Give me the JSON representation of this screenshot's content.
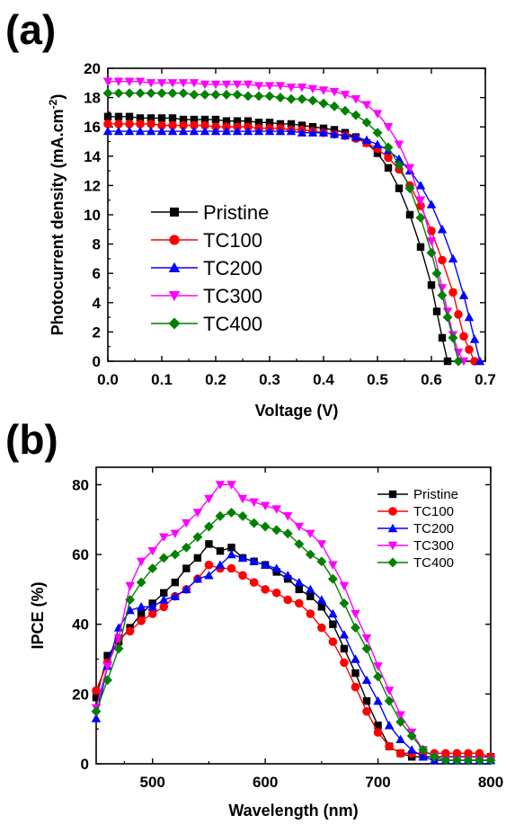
{
  "panels": {
    "a": "(a)",
    "b": "(b)"
  },
  "chart_data": [
    {
      "type": "line",
      "panel": "(a)",
      "xlabel": "Voltage (V)",
      "ylabel": "Photocurrent density (mA.cm",
      "ylabel_sup": "-2",
      "ylabel_end": ")",
      "xlim": [
        0,
        0.7
      ],
      "ylim": [
        0,
        20
      ],
      "xticks": [
        "0.0",
        "0.1",
        "0.2",
        "0.3",
        "0.4",
        "0.5",
        "0.6",
        "0.7"
      ],
      "yticks": [
        "0",
        "2",
        "4",
        "6",
        "8",
        "10",
        "12",
        "14",
        "16",
        "18",
        "20"
      ],
      "legend_position": "center-left",
      "series": [
        {
          "name": "Pristine",
          "color": "#000000",
          "marker": "square",
          "x": [
            0,
            0.02,
            0.04,
            0.06,
            0.08,
            0.1,
            0.12,
            0.14,
            0.16,
            0.18,
            0.2,
            0.22,
            0.24,
            0.26,
            0.28,
            0.3,
            0.32,
            0.34,
            0.36,
            0.38,
            0.4,
            0.42,
            0.44,
            0.46,
            0.48,
            0.5,
            0.52,
            0.54,
            0.56,
            0.58,
            0.6,
            0.61,
            0.62,
            0.63
          ],
          "y": [
            16.7,
            16.7,
            16.7,
            16.6,
            16.6,
            16.6,
            16.6,
            16.5,
            16.5,
            16.5,
            16.5,
            16.4,
            16.4,
            16.4,
            16.3,
            16.3,
            16.2,
            16.2,
            16.1,
            16.0,
            15.9,
            15.8,
            15.6,
            15.3,
            14.9,
            14.2,
            13.2,
            11.8,
            10.0,
            7.8,
            5.2,
            3.4,
            1.6,
            0
          ]
        },
        {
          "name": "TC100",
          "color": "#ff0000",
          "marker": "circle",
          "x": [
            0,
            0.02,
            0.04,
            0.06,
            0.08,
            0.1,
            0.12,
            0.14,
            0.16,
            0.18,
            0.2,
            0.22,
            0.24,
            0.26,
            0.28,
            0.3,
            0.32,
            0.34,
            0.36,
            0.38,
            0.4,
            0.42,
            0.44,
            0.46,
            0.48,
            0.5,
            0.52,
            0.54,
            0.56,
            0.58,
            0.6,
            0.62,
            0.64,
            0.65,
            0.66,
            0.67,
            0.68
          ],
          "y": [
            16.2,
            16.2,
            16.2,
            16.2,
            16.2,
            16.1,
            16.1,
            16.1,
            16.1,
            16.1,
            16.0,
            16.0,
            16.0,
            16.0,
            15.9,
            15.9,
            15.9,
            15.8,
            15.8,
            15.7,
            15.6,
            15.5,
            15.4,
            15.2,
            14.9,
            14.5,
            13.9,
            13.1,
            12.0,
            10.6,
            8.9,
            6.9,
            4.7,
            3.2,
            1.7,
            0.8,
            0
          ]
        },
        {
          "name": "TC200",
          "color": "#0000ff",
          "marker": "triangle-up",
          "x": [
            0,
            0.02,
            0.04,
            0.06,
            0.08,
            0.1,
            0.12,
            0.14,
            0.16,
            0.18,
            0.2,
            0.22,
            0.24,
            0.26,
            0.28,
            0.3,
            0.32,
            0.34,
            0.36,
            0.38,
            0.4,
            0.42,
            0.44,
            0.46,
            0.48,
            0.5,
            0.52,
            0.54,
            0.56,
            0.58,
            0.6,
            0.62,
            0.64,
            0.66,
            0.67,
            0.68,
            0.69
          ],
          "y": [
            15.7,
            15.7,
            15.7,
            15.7,
            15.7,
            15.7,
            15.7,
            15.7,
            15.7,
            15.7,
            15.7,
            15.7,
            15.7,
            15.7,
            15.7,
            15.7,
            15.7,
            15.7,
            15.6,
            15.6,
            15.6,
            15.5,
            15.4,
            15.3,
            15.1,
            14.8,
            14.4,
            13.8,
            13.0,
            12.0,
            10.7,
            9.0,
            7.0,
            4.5,
            3.0,
            1.5,
            0
          ]
        },
        {
          "name": "TC300",
          "color": "#ff00ff",
          "marker": "triangle-down",
          "x": [
            0,
            0.02,
            0.04,
            0.06,
            0.08,
            0.1,
            0.12,
            0.14,
            0.16,
            0.18,
            0.2,
            0.22,
            0.24,
            0.26,
            0.28,
            0.3,
            0.32,
            0.34,
            0.36,
            0.38,
            0.4,
            0.42,
            0.44,
            0.46,
            0.48,
            0.5,
            0.52,
            0.54,
            0.56,
            0.58,
            0.6,
            0.62,
            0.63,
            0.64,
            0.65,
            0.66
          ],
          "y": [
            19.1,
            19.1,
            19.1,
            19.1,
            19.0,
            19.0,
            19.0,
            19.0,
            19.0,
            18.9,
            18.9,
            18.9,
            18.9,
            18.9,
            18.8,
            18.8,
            18.8,
            18.7,
            18.7,
            18.6,
            18.5,
            18.4,
            18.2,
            17.9,
            17.5,
            16.9,
            16.0,
            14.8,
            13.2,
            11.0,
            8.2,
            5.0,
            3.4,
            1.8,
            0.6,
            0
          ]
        },
        {
          "name": "TC400",
          "color": "#008000",
          "marker": "diamond",
          "x": [
            0,
            0.02,
            0.04,
            0.06,
            0.08,
            0.1,
            0.12,
            0.14,
            0.16,
            0.18,
            0.2,
            0.22,
            0.24,
            0.26,
            0.28,
            0.3,
            0.32,
            0.34,
            0.36,
            0.38,
            0.4,
            0.42,
            0.44,
            0.46,
            0.48,
            0.5,
            0.52,
            0.54,
            0.56,
            0.58,
            0.6,
            0.61,
            0.62,
            0.63,
            0.64,
            0.65
          ],
          "y": [
            18.3,
            18.3,
            18.3,
            18.3,
            18.3,
            18.3,
            18.3,
            18.3,
            18.2,
            18.2,
            18.2,
            18.2,
            18.2,
            18.1,
            18.1,
            18.1,
            18.0,
            17.9,
            17.9,
            17.8,
            17.6,
            17.4,
            17.1,
            16.8,
            16.3,
            15.6,
            14.6,
            13.4,
            11.8,
            9.8,
            7.4,
            6.0,
            4.5,
            3.0,
            1.6,
            0
          ]
        }
      ]
    },
    {
      "type": "line",
      "panel": "(b)",
      "xlabel": "Wavelength (nm)",
      "ylabel": "IPCE (%)",
      "xlim": [
        450,
        800
      ],
      "ylim": [
        0,
        85
      ],
      "xticks": [
        "500",
        "600",
        "700",
        "800"
      ],
      "xtick_values": [
        500,
        600,
        700,
        800
      ],
      "yticks": [
        "0",
        "20",
        "40",
        "60",
        "80"
      ],
      "ytick_values": [
        0,
        20,
        40,
        60,
        80
      ],
      "legend_position": "top-right",
      "series": [
        {
          "name": "Pristine",
          "color": "#000000",
          "marker": "square",
          "x": [
            450,
            460,
            470,
            480,
            490,
            500,
            510,
            520,
            530,
            540,
            550,
            560,
            570,
            580,
            590,
            600,
            610,
            620,
            630,
            640,
            650,
            660,
            670,
            680,
            690,
            700,
            710,
            720,
            730,
            740,
            750,
            760,
            770,
            780,
            790,
            800
          ],
          "y": [
            19,
            31,
            35,
            39,
            43,
            46,
            49,
            52,
            56,
            59,
            63,
            61,
            62,
            59,
            58,
            57,
            55,
            53,
            50,
            48,
            45,
            40,
            33,
            26,
            18,
            11,
            5,
            3,
            2,
            2,
            2,
            2,
            2,
            2,
            2,
            2
          ]
        },
        {
          "name": "TC100",
          "color": "#ff0000",
          "marker": "circle",
          "x": [
            450,
            460,
            470,
            480,
            490,
            500,
            510,
            520,
            530,
            540,
            550,
            560,
            570,
            580,
            590,
            600,
            610,
            620,
            630,
            640,
            650,
            660,
            670,
            680,
            690,
            700,
            710,
            720,
            730,
            740,
            750,
            760,
            770,
            780,
            790,
            800
          ],
          "y": [
            21,
            29,
            36,
            38,
            41,
            43,
            45,
            48,
            50,
            53,
            57,
            56,
            56,
            54,
            52,
            50,
            49,
            47,
            46,
            43,
            39,
            35,
            29,
            22,
            15,
            9,
            5,
            3,
            3,
            3,
            3,
            3,
            3,
            3,
            3,
            2
          ]
        },
        {
          "name": "TC200",
          "color": "#0000ff",
          "marker": "triangle-up",
          "x": [
            450,
            460,
            470,
            480,
            490,
            500,
            510,
            520,
            530,
            540,
            550,
            560,
            570,
            580,
            590,
            600,
            610,
            620,
            630,
            640,
            650,
            660,
            670,
            680,
            690,
            700,
            710,
            720,
            730,
            740,
            750,
            760,
            770,
            780,
            790,
            800
          ],
          "y": [
            13,
            28,
            39,
            44,
            45,
            45,
            47,
            48,
            50,
            53,
            54,
            57,
            60,
            59,
            58,
            57,
            56,
            54,
            52,
            50,
            47,
            43,
            37,
            30,
            24,
            18,
            11,
            7,
            4,
            2,
            1,
            1,
            1,
            1,
            1,
            1
          ]
        },
        {
          "name": "TC300",
          "color": "#ff00ff",
          "marker": "triangle-down",
          "x": [
            450,
            460,
            470,
            480,
            490,
            500,
            510,
            520,
            530,
            540,
            550,
            560,
            570,
            580,
            590,
            600,
            610,
            620,
            630,
            640,
            650,
            660,
            670,
            680,
            690,
            700,
            710,
            720,
            730,
            740,
            750,
            760,
            770,
            780,
            790,
            800
          ],
          "y": [
            16,
            28,
            36,
            51,
            58,
            61,
            65,
            66,
            69,
            72,
            76,
            80,
            80,
            76,
            75,
            74,
            73,
            71,
            68,
            66,
            63,
            57,
            51,
            43,
            36,
            28,
            21,
            14,
            9,
            4,
            2,
            1,
            1,
            1,
            1,
            1
          ]
        },
        {
          "name": "TC400",
          "color": "#008000",
          "marker": "diamond",
          "x": [
            450,
            460,
            470,
            480,
            490,
            500,
            510,
            520,
            530,
            540,
            550,
            560,
            570,
            580,
            590,
            600,
            610,
            620,
            630,
            640,
            650,
            660,
            670,
            680,
            690,
            700,
            710,
            720,
            730,
            740,
            750,
            760,
            770,
            780,
            790,
            800
          ],
          "y": [
            15,
            24,
            33,
            47,
            52,
            56,
            59,
            60,
            62,
            65,
            68,
            71,
            72,
            71,
            69,
            68,
            67,
            66,
            63,
            60,
            58,
            53,
            46,
            39,
            33,
            25,
            18,
            12,
            8,
            4,
            2,
            1,
            1,
            1,
            1,
            1
          ]
        }
      ]
    }
  ]
}
